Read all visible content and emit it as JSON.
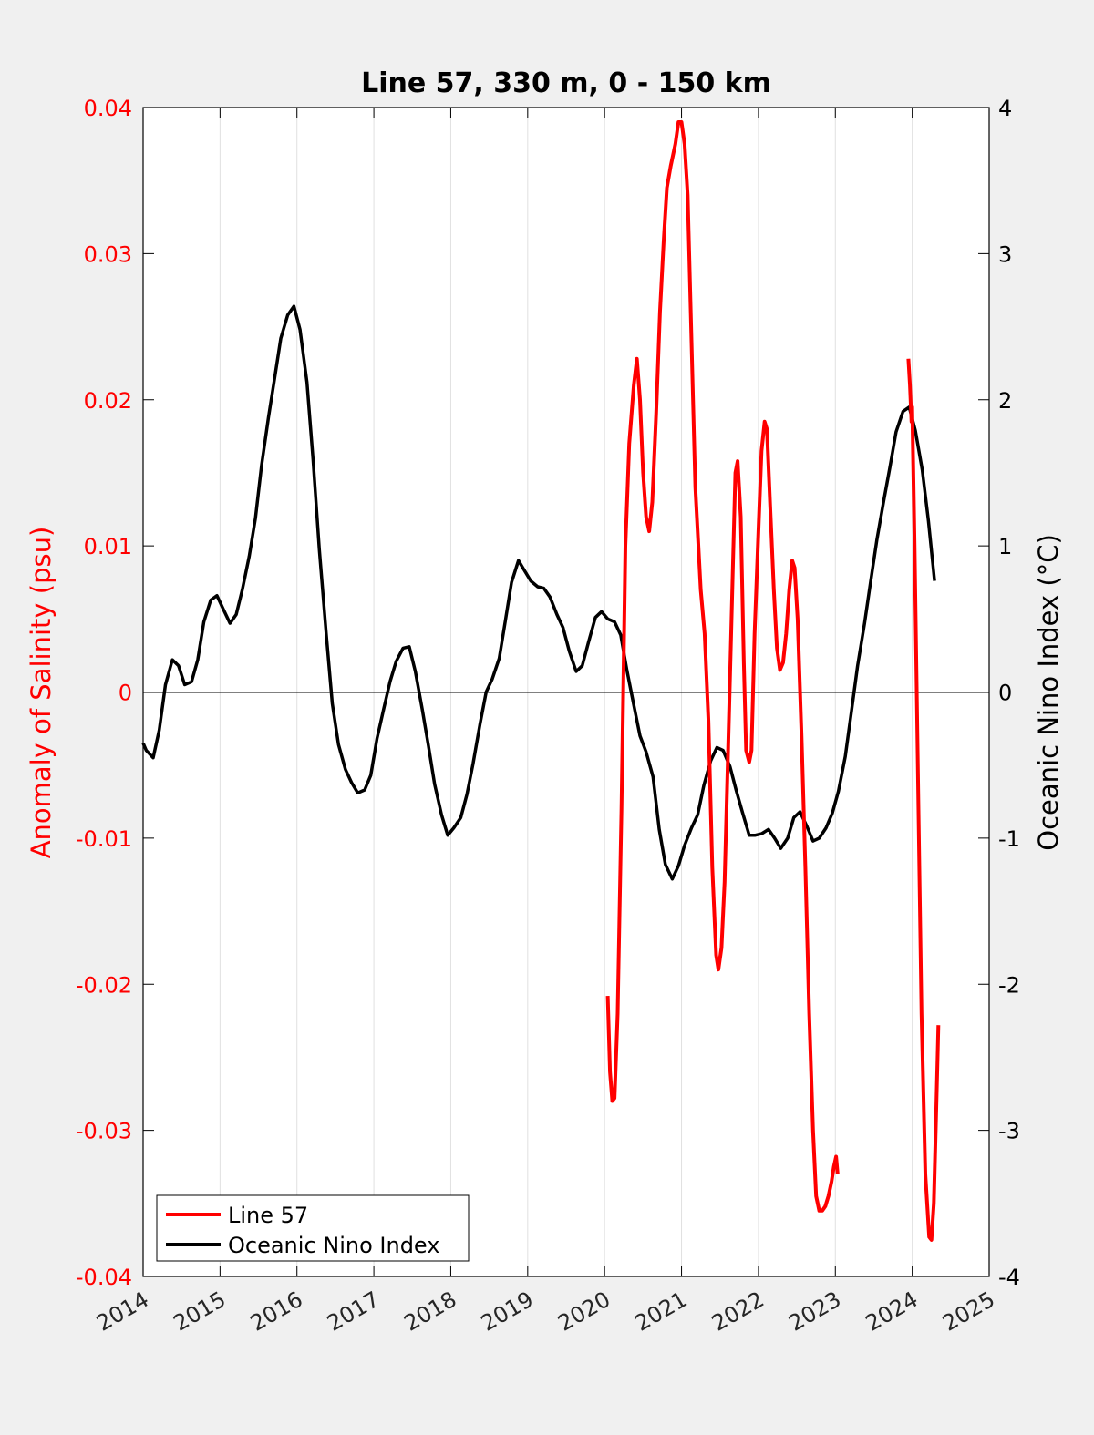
{
  "chart_data": {
    "type": "line",
    "title": "Line 57, 330 m, 0 - 150 km",
    "xlabel": "",
    "ylabel_left": "Anomaly of Salinity (psu)",
    "ylabel_right": "Oceanic Nino Index (°C)",
    "xlim": [
      2014,
      2025
    ],
    "ylim_left": [
      -0.04,
      0.04
    ],
    "ylim_right": [
      -4,
      4
    ],
    "x_ticks": [
      "2014",
      "2015",
      "2016",
      "2017",
      "2018",
      "2019",
      "2020",
      "2021",
      "2022",
      "2023",
      "2024",
      "2025"
    ],
    "y_ticks_left": [
      "-0.04",
      "-0.03",
      "-0.02",
      "-0.01",
      "0",
      "0.01",
      "0.02",
      "0.03",
      "0.04"
    ],
    "y_ticks_right": [
      "-4",
      "-3",
      "-2",
      "-1",
      "0",
      "1",
      "2",
      "3",
      "4"
    ],
    "grid": "vertical",
    "legend_position": "bottom-left",
    "colors": {
      "line57": "#ff0000",
      "oni": "#000000",
      "axes_bg": "#ffffff",
      "figure_bg": "#f0f0f0"
    },
    "series": [
      {
        "name": "Line 57",
        "axis": "left",
        "segments": [
          [
            [
              2020.04,
              -0.0208
            ],
            [
              2020.07,
              -0.026
            ],
            [
              2020.1,
              -0.028
            ],
            [
              2020.13,
              -0.0278
            ],
            [
              2020.17,
              -0.022
            ],
            [
              2020.22,
              -0.008
            ],
            [
              2020.27,
              0.01
            ],
            [
              2020.32,
              0.017
            ],
            [
              2020.38,
              0.021
            ],
            [
              2020.42,
              0.0228
            ],
            [
              2020.46,
              0.02
            ],
            [
              2020.5,
              0.015
            ],
            [
              2020.54,
              0.012
            ],
            [
              2020.58,
              0.011
            ],
            [
              2020.62,
              0.013
            ],
            [
              2020.67,
              0.019
            ],
            [
              2020.72,
              0.026
            ],
            [
              2020.77,
              0.031
            ],
            [
              2020.81,
              0.0345
            ],
            [
              2020.86,
              0.036
            ],
            [
              2020.92,
              0.0375
            ],
            [
              2020.96,
              0.039
            ],
            [
              2021.0,
              0.039
            ],
            [
              2021.04,
              0.0375
            ],
            [
              2021.08,
              0.034
            ],
            [
              2021.13,
              0.024
            ],
            [
              2021.18,
              0.014
            ],
            [
              2021.25,
              0.007
            ],
            [
              2021.3,
              0.004
            ],
            [
              2021.35,
              -0.002
            ],
            [
              2021.4,
              -0.012
            ],
            [
              2021.45,
              -0.018
            ],
            [
              2021.48,
              -0.019
            ],
            [
              2021.52,
              -0.0175
            ],
            [
              2021.56,
              -0.013
            ],
            [
              2021.6,
              -0.005
            ],
            [
              2021.65,
              0.005
            ],
            [
              2021.7,
              0.015
            ],
            [
              2021.73,
              0.0158
            ],
            [
              2021.77,
              0.012
            ],
            [
              2021.81,
              0.002
            ],
            [
              2021.84,
              -0.004
            ],
            [
              2021.88,
              -0.0048
            ],
            [
              2021.91,
              -0.004
            ],
            [
              2021.95,
              0.004
            ],
            [
              2022.0,
              0.011
            ],
            [
              2022.04,
              0.0165
            ],
            [
              2022.08,
              0.0185
            ],
            [
              2022.11,
              0.018
            ],
            [
              2022.15,
              0.013
            ],
            [
              2022.2,
              0.007
            ],
            [
              2022.24,
              0.003
            ],
            [
              2022.28,
              0.0015
            ],
            [
              2022.32,
              0.002
            ],
            [
              2022.36,
              0.004
            ],
            [
              2022.4,
              0.007
            ],
            [
              2022.44,
              0.009
            ],
            [
              2022.47,
              0.0085
            ],
            [
              2022.51,
              0.005
            ],
            [
              2022.56,
              -0.003
            ],
            [
              2022.61,
              -0.012
            ],
            [
              2022.66,
              -0.022
            ],
            [
              2022.71,
              -0.03
            ],
            [
              2022.75,
              -0.0345
            ],
            [
              2022.79,
              -0.0355
            ],
            [
              2022.83,
              -0.0355
            ],
            [
              2022.87,
              -0.0352
            ],
            [
              2022.91,
              -0.0345
            ],
            [
              2022.95,
              -0.0335
            ],
            [
              2022.98,
              -0.0325
            ],
            [
              2023.01,
              -0.0318
            ],
            [
              2023.03,
              -0.033
            ]
          ],
          [
            [
              2023.95,
              0.0228
            ],
            [
              2023.97,
              0.021
            ],
            [
              2023.99,
              0.0185
            ],
            [
              2024.0,
              0.0195
            ],
            [
              2024.03,
              0.01
            ],
            [
              2024.07,
              -0.004
            ],
            [
              2024.12,
              -0.022
            ],
            [
              2024.17,
              -0.033
            ],
            [
              2024.22,
              -0.0373
            ],
            [
              2024.25,
              -0.0375
            ],
            [
              2024.28,
              -0.035
            ],
            [
              2024.31,
              -0.029
            ],
            [
              2024.34,
              -0.0228
            ]
          ]
        ]
      },
      {
        "name": "Oceanic Nino Index",
        "axis": "right",
        "points": [
          [
            2014.0,
            -0.35
          ],
          [
            2014.04,
            -0.4
          ],
          [
            2014.13,
            -0.45
          ],
          [
            2014.21,
            -0.26
          ],
          [
            2014.29,
            0.05
          ],
          [
            2014.38,
            0.22
          ],
          [
            2014.46,
            0.18
          ],
          [
            2014.54,
            0.05
          ],
          [
            2014.63,
            0.07
          ],
          [
            2014.71,
            0.22
          ],
          [
            2014.79,
            0.48
          ],
          [
            2014.88,
            0.63
          ],
          [
            2014.96,
            0.66
          ],
          [
            2015.04,
            0.57
          ],
          [
            2015.13,
            0.47
          ],
          [
            2015.21,
            0.53
          ],
          [
            2015.29,
            0.7
          ],
          [
            2015.38,
            0.93
          ],
          [
            2015.46,
            1.19
          ],
          [
            2015.54,
            1.55
          ],
          [
            2015.63,
            1.88
          ],
          [
            2015.71,
            2.15
          ],
          [
            2015.79,
            2.42
          ],
          [
            2015.88,
            2.58
          ],
          [
            2015.96,
            2.64
          ],
          [
            2016.04,
            2.48
          ],
          [
            2016.13,
            2.12
          ],
          [
            2016.21,
            1.59
          ],
          [
            2016.29,
            0.98
          ],
          [
            2016.38,
            0.4
          ],
          [
            2016.46,
            -0.08
          ],
          [
            2016.54,
            -0.36
          ],
          [
            2016.63,
            -0.53
          ],
          [
            2016.71,
            -0.62
          ],
          [
            2016.79,
            -0.69
          ],
          [
            2016.88,
            -0.67
          ],
          [
            2016.96,
            -0.57
          ],
          [
            2017.04,
            -0.32
          ],
          [
            2017.13,
            -0.11
          ],
          [
            2017.21,
            0.07
          ],
          [
            2017.29,
            0.21
          ],
          [
            2017.38,
            0.3
          ],
          [
            2017.46,
            0.31
          ],
          [
            2017.54,
            0.14
          ],
          [
            2017.63,
            -0.12
          ],
          [
            2017.71,
            -0.37
          ],
          [
            2017.79,
            -0.63
          ],
          [
            2017.88,
            -0.84
          ],
          [
            2017.96,
            -0.98
          ],
          [
            2018.04,
            -0.93
          ],
          [
            2018.13,
            -0.86
          ],
          [
            2018.21,
            -0.7
          ],
          [
            2018.29,
            -0.49
          ],
          [
            2018.38,
            -0.22
          ],
          [
            2018.46,
            0.0
          ],
          [
            2018.54,
            0.09
          ],
          [
            2018.63,
            0.23
          ],
          [
            2018.71,
            0.49
          ],
          [
            2018.79,
            0.75
          ],
          [
            2018.88,
            0.9
          ],
          [
            2018.96,
            0.83
          ],
          [
            2019.04,
            0.76
          ],
          [
            2019.13,
            0.72
          ],
          [
            2019.21,
            0.71
          ],
          [
            2019.29,
            0.65
          ],
          [
            2019.38,
            0.53
          ],
          [
            2019.46,
            0.44
          ],
          [
            2019.54,
            0.28
          ],
          [
            2019.63,
            0.14
          ],
          [
            2019.71,
            0.18
          ],
          [
            2019.79,
            0.34
          ],
          [
            2019.88,
            0.51
          ],
          [
            2019.96,
            0.55
          ],
          [
            2020.04,
            0.5
          ],
          [
            2020.13,
            0.48
          ],
          [
            2020.21,
            0.39
          ],
          [
            2020.29,
            0.15
          ],
          [
            2020.38,
            -0.09
          ],
          [
            2020.46,
            -0.3
          ],
          [
            2020.54,
            -0.41
          ],
          [
            2020.63,
            -0.58
          ],
          [
            2020.71,
            -0.94
          ],
          [
            2020.79,
            -1.18
          ],
          [
            2020.88,
            -1.28
          ],
          [
            2020.96,
            -1.19
          ],
          [
            2021.04,
            -1.05
          ],
          [
            2021.13,
            -0.93
          ],
          [
            2021.21,
            -0.84
          ],
          [
            2021.29,
            -0.64
          ],
          [
            2021.38,
            -0.47
          ],
          [
            2021.46,
            -0.38
          ],
          [
            2021.54,
            -0.4
          ],
          [
            2021.63,
            -0.51
          ],
          [
            2021.71,
            -0.67
          ],
          [
            2021.79,
            -0.82
          ],
          [
            2021.88,
            -0.98
          ],
          [
            2021.96,
            -0.98
          ],
          [
            2022.04,
            -0.97
          ],
          [
            2022.13,
            -0.94
          ],
          [
            2022.21,
            -1.0
          ],
          [
            2022.29,
            -1.07
          ],
          [
            2022.38,
            -1.0
          ],
          [
            2022.46,
            -0.86
          ],
          [
            2022.54,
            -0.82
          ],
          [
            2022.63,
            -0.92
          ],
          [
            2022.71,
            -1.02
          ],
          [
            2022.79,
            -1.0
          ],
          [
            2022.88,
            -0.93
          ],
          [
            2022.96,
            -0.83
          ],
          [
            2023.04,
            -0.68
          ],
          [
            2023.13,
            -0.44
          ],
          [
            2023.21,
            -0.13
          ],
          [
            2023.29,
            0.18
          ],
          [
            2023.38,
            0.47
          ],
          [
            2023.46,
            0.76
          ],
          [
            2023.54,
            1.04
          ],
          [
            2023.63,
            1.31
          ],
          [
            2023.71,
            1.54
          ],
          [
            2023.79,
            1.78
          ],
          [
            2023.88,
            1.92
          ],
          [
            2023.96,
            1.95
          ],
          [
            2024.04,
            1.79
          ],
          [
            2024.13,
            1.52
          ],
          [
            2024.21,
            1.17
          ],
          [
            2024.29,
            0.76
          ]
        ]
      }
    ],
    "legend": [
      "Line 57",
      "Oceanic Nino Index"
    ]
  }
}
